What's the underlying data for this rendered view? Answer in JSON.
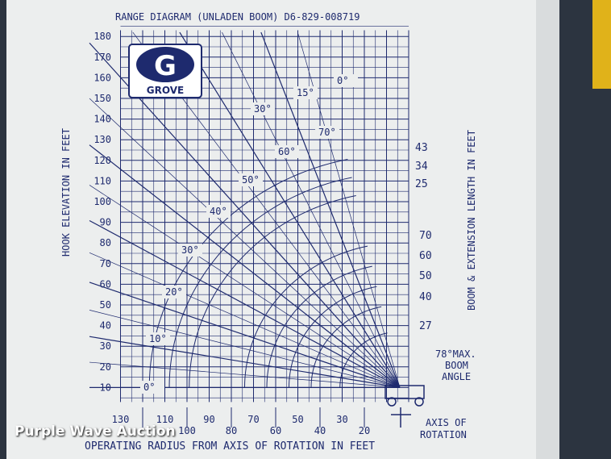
{
  "placard": {
    "title": "RANGE DIAGRAM (UNLADEN BOOM) D6-829-008719",
    "y_axis_label": "HOOK ELEVATION IN FEET",
    "right_label": "BOOM & EXTENSION LENGTH IN FEET",
    "x_axis_label": "OPERATING RADIUS FROM AXIS OF ROTATION IN FEET",
    "y_ticks": [
      "180",
      "170",
      "160",
      "150",
      "140",
      "130",
      "120",
      "110",
      "100",
      "90",
      "80",
      "70",
      "60",
      "50",
      "40",
      "30",
      "20",
      "10"
    ],
    "x_ticks_upper": [
      "130",
      "110",
      "90",
      "70",
      "50",
      "30"
    ],
    "x_ticks_lower": [
      "100",
      "80",
      "60",
      "40",
      "20"
    ],
    "boom_angle_labels": [
      "0°",
      "10°",
      "20°",
      "30°",
      "40°",
      "50°",
      "60°",
      "70°"
    ],
    "jib_angle_labels": [
      "30°",
      "15°",
      "0°"
    ],
    "boom_lengths": [
      "70",
      "60",
      "50",
      "40",
      "27"
    ],
    "extension_lengths": [
      "43",
      "34",
      "25"
    ],
    "max_angle_label": [
      "78°MAX.",
      "BOOM",
      "ANGLE"
    ],
    "axis_label": [
      "AXIS OF",
      "ROTATION"
    ],
    "logo": "GROVE",
    "logo_letter": "G"
  },
  "watermark": "Purple Wave Auction",
  "colors": {
    "ink": "#1e2a6e",
    "placard": "#eef0f0",
    "frame": "#2c3440",
    "accent": "#e0b21a"
  }
}
